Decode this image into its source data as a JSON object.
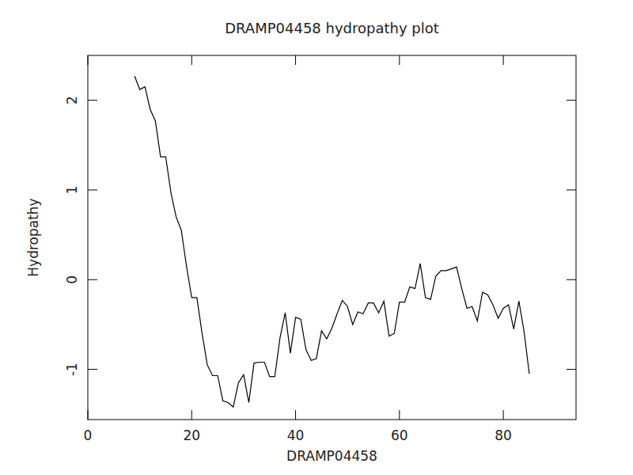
{
  "chart_data": {
    "type": "line",
    "title": "DRAMP04458 hydropathy plot",
    "x_label": "DRAMP04458",
    "y_label": "Hydropathy",
    "x": [
      9,
      10,
      11,
      12,
      13,
      14,
      15,
      16,
      17,
      18,
      19,
      20,
      21,
      22,
      23,
      24,
      25,
      26,
      27,
      28,
      29,
      30,
      31,
      32,
      33,
      34,
      35,
      36,
      37,
      38,
      39,
      40,
      41,
      42,
      43,
      44,
      45,
      46,
      47,
      48,
      49,
      50,
      51,
      52,
      53,
      54,
      55,
      56,
      57,
      58,
      59,
      60,
      61,
      62,
      63,
      64,
      65,
      66,
      67,
      68,
      69,
      70,
      71,
      72,
      73,
      74,
      75,
      76,
      77,
      78,
      79,
      80,
      81,
      82,
      83,
      84,
      85
    ],
    "values": [
      2.27,
      2.12,
      2.15,
      1.9,
      1.77,
      1.37,
      1.37,
      0.97,
      0.7,
      0.55,
      0.15,
      -0.2,
      -0.2,
      -0.6,
      -0.95,
      -1.07,
      -1.07,
      -1.35,
      -1.37,
      -1.42,
      -1.15,
      -1.06,
      -1.37,
      -0.93,
      -0.92,
      -0.92,
      -1.08,
      -1.08,
      -0.65,
      -0.37,
      -0.82,
      -0.42,
      -0.44,
      -0.78,
      -0.9,
      -0.88,
      -0.57,
      -0.66,
      -0.54,
      -0.38,
      -0.23,
      -0.3,
      -0.5,
      -0.36,
      -0.38,
      -0.26,
      -0.26,
      -0.37,
      -0.24,
      -0.63,
      -0.6,
      -0.25,
      -0.25,
      -0.08,
      -0.1,
      0.18,
      -0.2,
      -0.22,
      0.04,
      0.1,
      0.1,
      0.12,
      0.14,
      -0.1,
      -0.32,
      -0.3,
      -0.46,
      -0.14,
      -0.17,
      -0.28,
      -0.43,
      -0.32,
      -0.28,
      -0.55,
      -0.24,
      -0.58,
      -1.05
    ],
    "color": "#000000",
    "xlim": [
      0,
      94
    ],
    "ylim": [
      -1.56,
      2.5
    ],
    "xticks": [
      0,
      20,
      40,
      60,
      80
    ],
    "yticks": [
      -1,
      0,
      1,
      2
    ],
    "grid": false
  }
}
